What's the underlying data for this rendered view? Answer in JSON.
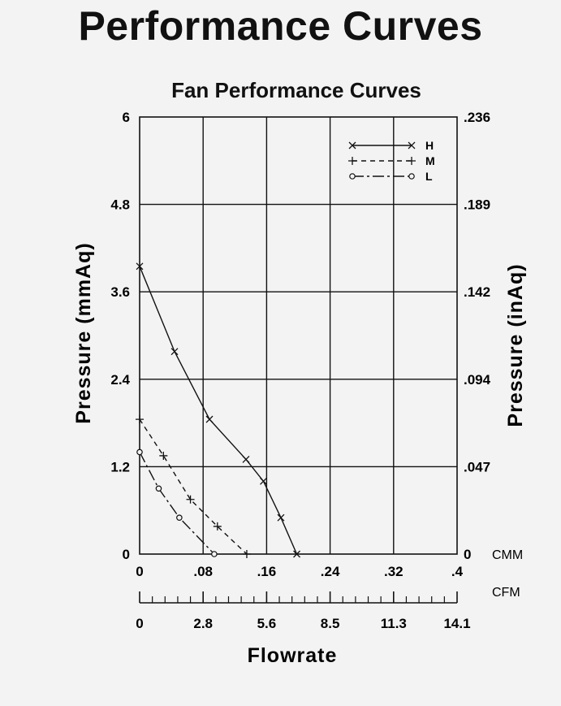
{
  "page": {
    "title": "Performance Curves"
  },
  "chart_data": {
    "type": "line",
    "title": "Fan Performance Curves",
    "xlabel": "Flowrate",
    "ylabel_left": "Pressure  (mmAq)",
    "ylabel_right": "Pressure  (inAq)",
    "x_unit_top": "CMM",
    "x_unit_bottom": "CFM",
    "xlim": [
      0,
      0.4
    ],
    "ylim": [
      0,
      6
    ],
    "grid": true,
    "legend_position": "top-right",
    "x_ticks_cmm": [
      "0",
      ".08",
      ".16",
      ".24",
      ".32",
      ".4"
    ],
    "x_ticks_cfm": [
      "0",
      "2.8",
      "5.6",
      "8.5",
      "11.3",
      "14.1"
    ],
    "y_ticks_left": [
      "0",
      "1.2",
      "2.4",
      "3.6",
      "4.8",
      "6"
    ],
    "y_ticks_right": [
      "0",
      ".047",
      ".094",
      ".142",
      ".189",
      ".236"
    ],
    "series": [
      {
        "name": "H",
        "marker": "x",
        "line_style": "solid",
        "x": [
          0,
          0.044,
          0.088,
          0.134,
          0.156,
          0.178,
          0.198
        ],
        "y": [
          3.95,
          2.78,
          1.85,
          1.3,
          1.0,
          0.5,
          0.0
        ]
      },
      {
        "name": "M",
        "marker": "+",
        "line_style": "dashed",
        "x": [
          0,
          0.03,
          0.064,
          0.098,
          0.135
        ],
        "y": [
          1.85,
          1.35,
          0.75,
          0.38,
          0.0
        ]
      },
      {
        "name": "L",
        "marker": "o",
        "line_style": "dash-dot",
        "x": [
          0,
          0.024,
          0.05,
          0.094
        ],
        "y": [
          1.4,
          0.9,
          0.5,
          0.0
        ]
      }
    ]
  }
}
